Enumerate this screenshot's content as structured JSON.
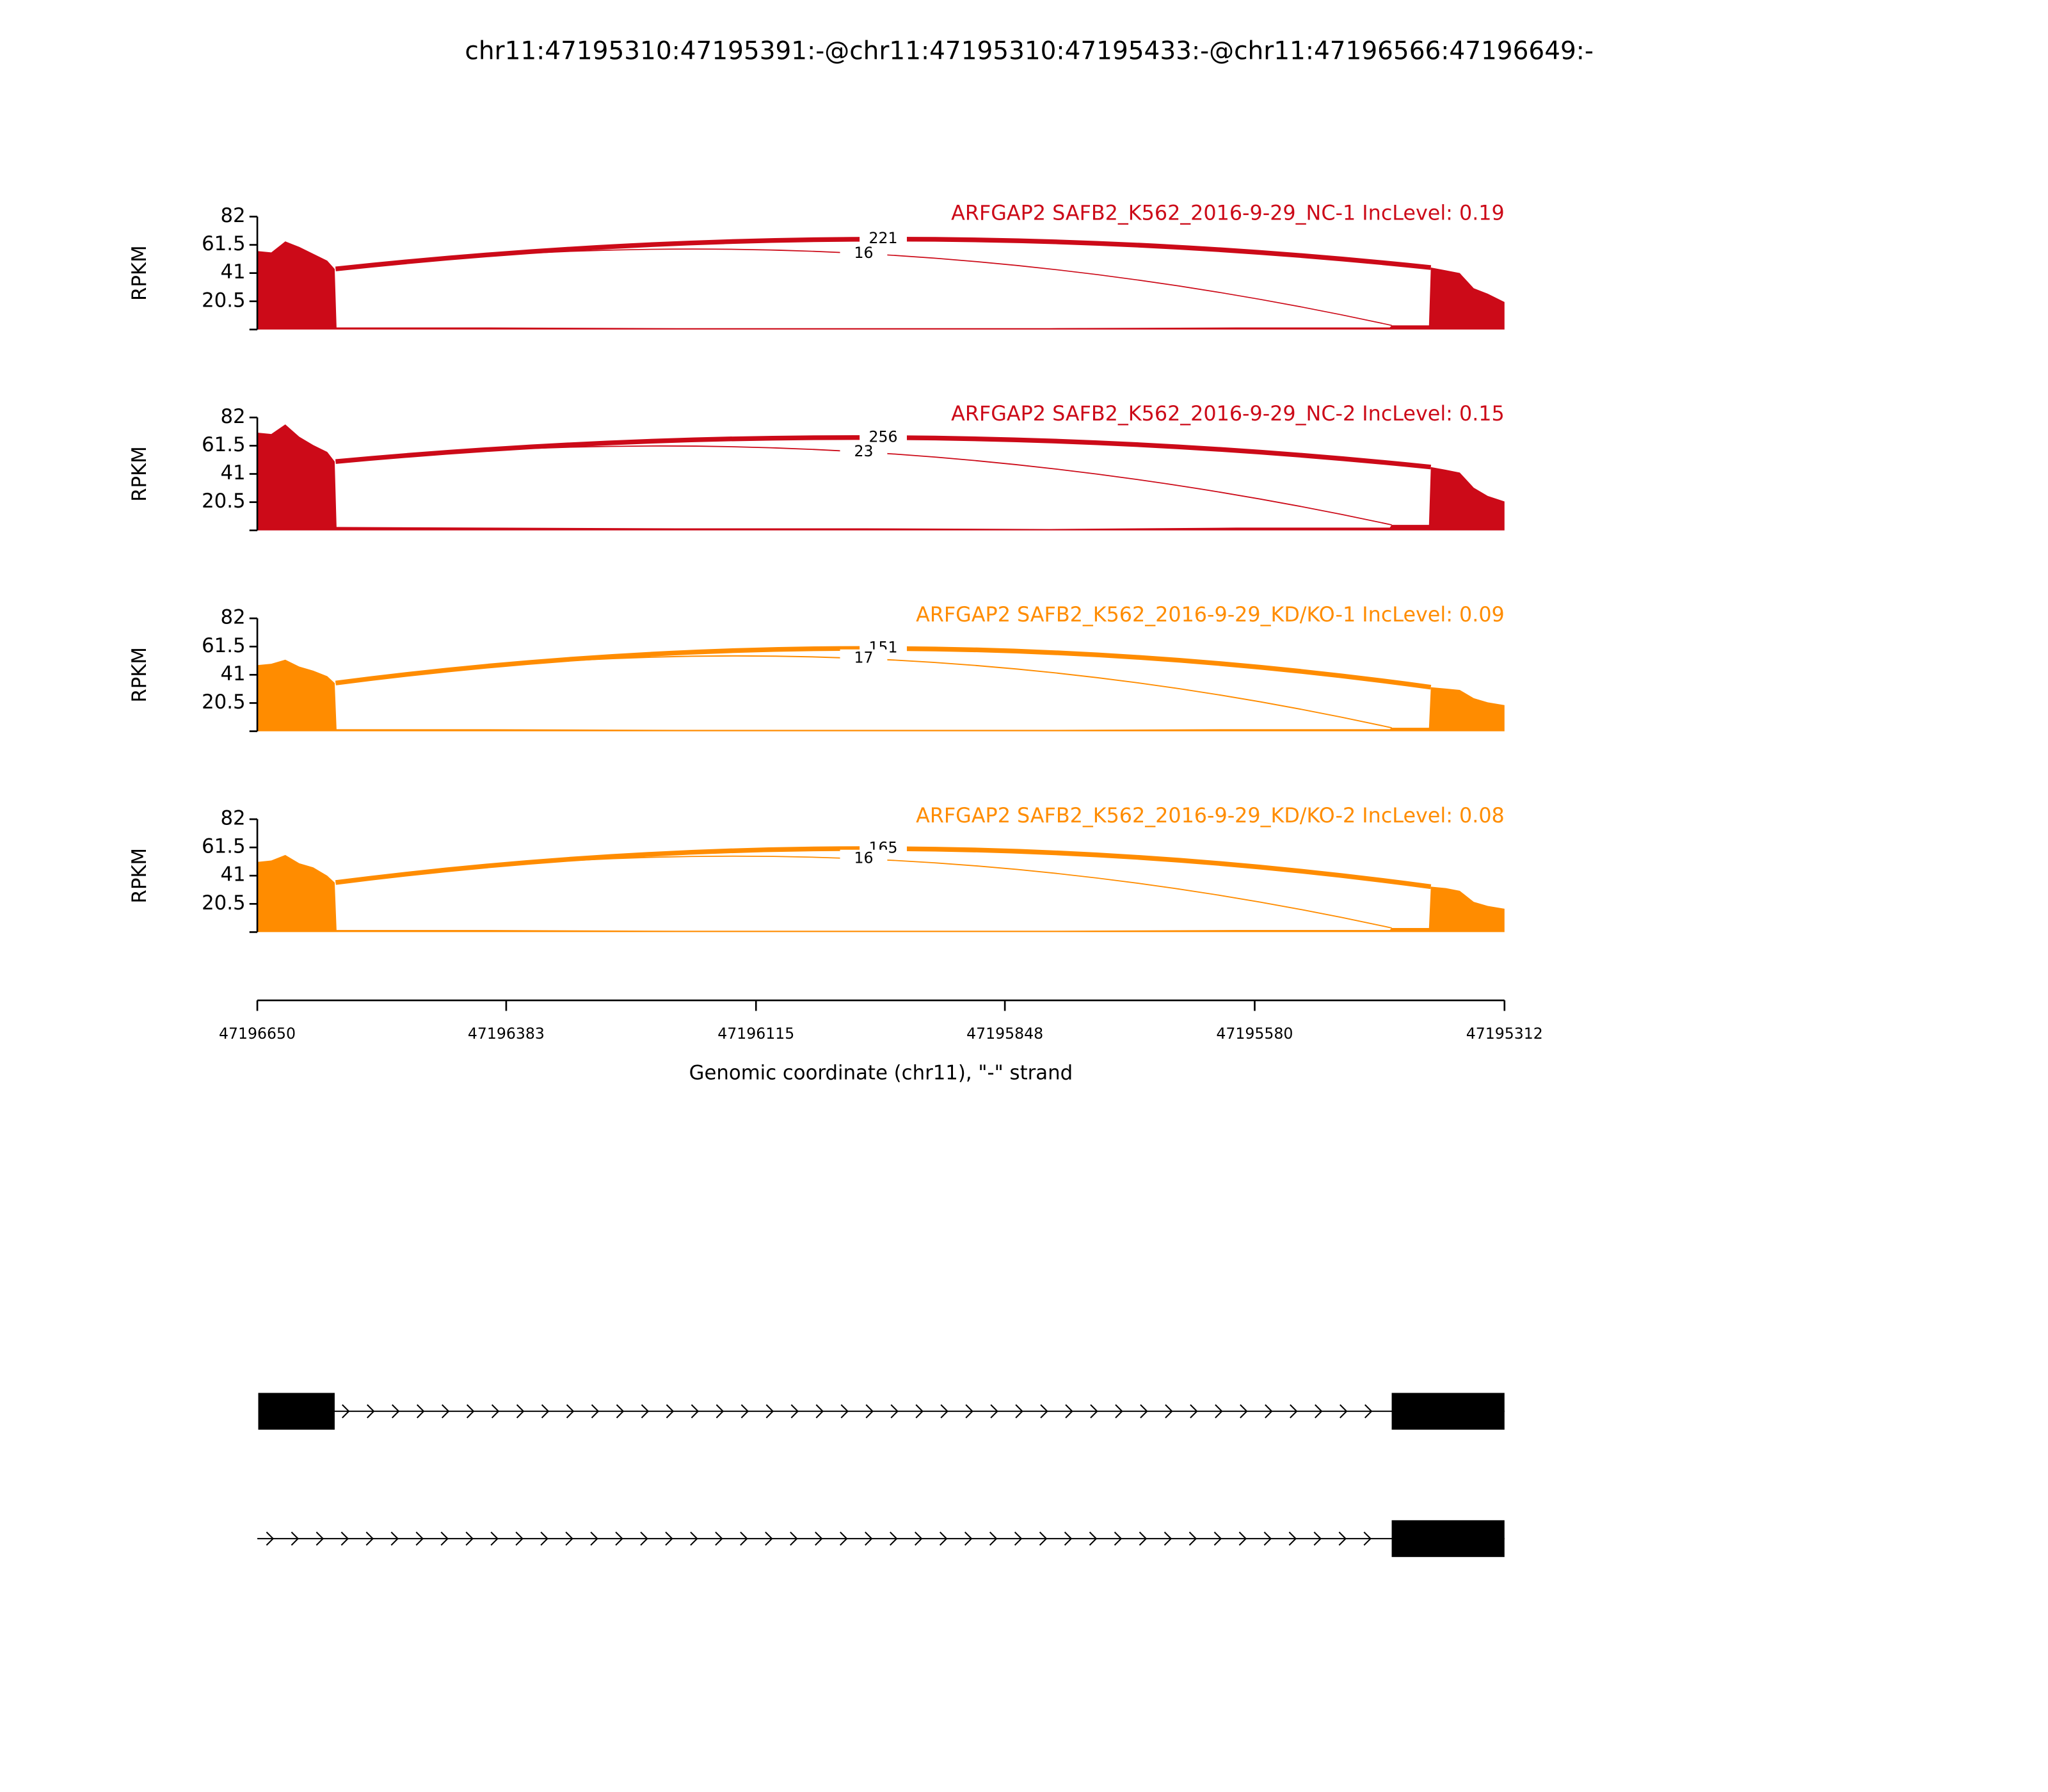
{
  "title": "chr11:47195310:47195391:-@chr11:47195310:47195433:-@chr11:47196566:47196649:-",
  "x_axis": {
    "label": "Genomic coordinate (chr11), \"-\" strand",
    "xlim": [
      47196650,
      47195312
    ],
    "xticks": [
      47196650,
      47196383,
      47196115,
      47195848,
      47195580,
      47195312
    ]
  },
  "chart_data": [
    {
      "type": "area",
      "title": "ARFGAP2 SAFB2_K562_2016-9-29_NC-1 IncLevel: 0.19",
      "color": "#cc0a18",
      "ylabel": "RPKM",
      "ylim": [
        0,
        82
      ],
      "yticks": [
        20.5,
        41,
        61.5,
        82
      ],
      "x": [
        47196650,
        47196635,
        47196620,
        47196605,
        47196590,
        47196575,
        47196567,
        47196565,
        47196400,
        47196200,
        47196000,
        47195800,
        47195600,
        47195435,
        47195433,
        47195393,
        47195391,
        47195375,
        47195360,
        47195345,
        47195330,
        47195312
      ],
      "values": [
        57,
        56,
        64,
        60,
        55,
        50,
        44,
        1.5,
        1.5,
        1,
        1,
        1,
        1.5,
        1.5,
        3,
        3,
        45,
        43,
        41,
        30,
        26,
        20
      ],
      "junctions": [
        {
          "start": 47196566,
          "end": 47195391,
          "count": 221
        },
        {
          "start": 47196566,
          "end": 47195433,
          "count": 16
        }
      ]
    },
    {
      "type": "area",
      "title": "ARFGAP2 SAFB2_K562_2016-9-29_NC-2 IncLevel: 0.15",
      "color": "#cc0a18",
      "ylabel": "RPKM",
      "ylim": [
        0,
        82
      ],
      "yticks": [
        20.5,
        41,
        61.5,
        82
      ],
      "x": [
        47196650,
        47196635,
        47196620,
        47196605,
        47196590,
        47196575,
        47196567,
        47196565,
        47196400,
        47196200,
        47196000,
        47195800,
        47195600,
        47195435,
        47195433,
        47195393,
        47195391,
        47195375,
        47195360,
        47195345,
        47195330,
        47195312
      ],
      "values": [
        71,
        70,
        77,
        68,
        62,
        57,
        50,
        2.5,
        2,
        1.5,
        1.5,
        1,
        2,
        2,
        4,
        4,
        46,
        44,
        42,
        31,
        25,
        21
      ],
      "junctions": [
        {
          "start": 47196566,
          "end": 47195391,
          "count": 256
        },
        {
          "start": 47196566,
          "end": 47195433,
          "count": 23
        }
      ]
    },
    {
      "type": "area",
      "title": "ARFGAP2 SAFB2_K562_2016-9-29_KD/KO-1 IncLevel: 0.09",
      "color": "#ff8c00",
      "ylabel": "RPKM",
      "ylim": [
        0,
        82
      ],
      "yticks": [
        20.5,
        41,
        61.5,
        82
      ],
      "x": [
        47196650,
        47196635,
        47196620,
        47196605,
        47196590,
        47196575,
        47196567,
        47196565,
        47196400,
        47196200,
        47196000,
        47195800,
        47195600,
        47195435,
        47195433,
        47195393,
        47195391,
        47195375,
        47195360,
        47195345,
        47195330,
        47195312
      ],
      "values": [
        48,
        49,
        52,
        47,
        44,
        40,
        35,
        1.5,
        1.5,
        1,
        1,
        1,
        1.5,
        1.5,
        2.5,
        2.5,
        32,
        31,
        30,
        24,
        21,
        19
      ],
      "junctions": [
        {
          "start": 47196566,
          "end": 47195391,
          "count": 151
        },
        {
          "start": 47196566,
          "end": 47195433,
          "count": 17
        }
      ]
    },
    {
      "type": "area",
      "title": "ARFGAP2 SAFB2_K562_2016-9-29_KD/KO-2 IncLevel: 0.08",
      "color": "#ff8c00",
      "ylabel": "RPKM",
      "ylim": [
        0,
        82
      ],
      "yticks": [
        20.5,
        41,
        61.5,
        82
      ],
      "x": [
        47196650,
        47196635,
        47196620,
        47196605,
        47196590,
        47196575,
        47196567,
        47196565,
        47196400,
        47196200,
        47196000,
        47195800,
        47195600,
        47195435,
        47195433,
        47195393,
        47195391,
        47195375,
        47195360,
        47195345,
        47195330,
        47195312
      ],
      "values": [
        51,
        52,
        56,
        50,
        47,
        41,
        36,
        1.5,
        1.5,
        1,
        1,
        1,
        1.5,
        1.5,
        3,
        3,
        33,
        32,
        30,
        22,
        19,
        17
      ],
      "junctions": [
        {
          "start": 47196566,
          "end": 47195391,
          "count": 165
        },
        {
          "start": 47196566,
          "end": 47195433,
          "count": 16
        }
      ]
    }
  ],
  "transcripts": [
    {
      "span": [
        47196649,
        47195312
      ],
      "exons": [
        [
          47196649,
          47196567
        ],
        [
          47195433,
          47195312
        ]
      ]
    },
    {
      "span": [
        47196650,
        47195312
      ],
      "exons": [
        [
          47195433,
          47195312
        ]
      ]
    }
  ]
}
